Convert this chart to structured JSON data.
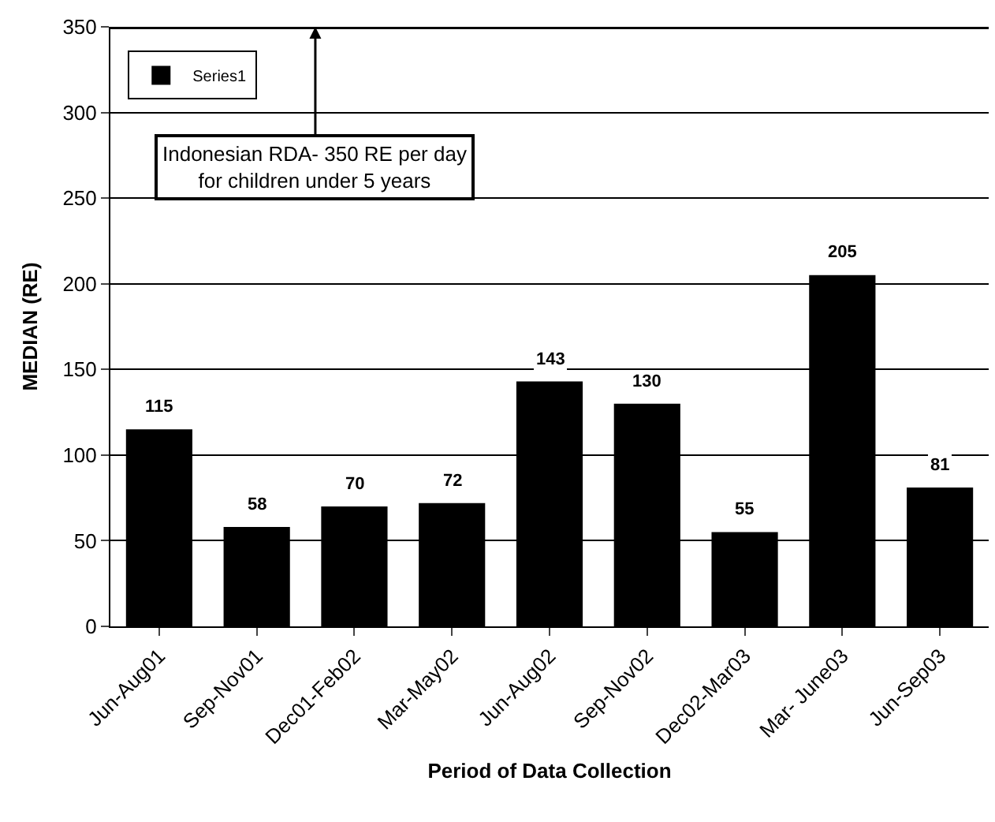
{
  "chart_data": {
    "type": "bar",
    "xlabel": "Period of Data Collection",
    "ylabel": "MEDIAN (RE)",
    "categories": [
      "Jun-Aug01",
      "Sep-Nov01",
      "Dec01-Feb02",
      "Mar-May02",
      "Jun-Aug02",
      "Sep-Nov02",
      "Dec02-Mar03",
      "Mar- June03",
      "Jun-Sep03"
    ],
    "series": [
      {
        "name": "Series1",
        "color": "#000000",
        "values": [
          115,
          58,
          70,
          72,
          143,
          130,
          55,
          205,
          81
        ]
      }
    ],
    "ylim": [
      0,
      350
    ],
    "yticks": [
      0,
      50,
      100,
      150,
      200,
      250,
      300,
      350
    ],
    "grid": "y",
    "legend": "top left",
    "data_labels": true,
    "ref_lines": [
      {
        "axis": "y",
        "value": 350,
        "label": "Indonesian RDA- 350 RE per day for children under 5 years",
        "color": "#000000"
      }
    ]
  }
}
